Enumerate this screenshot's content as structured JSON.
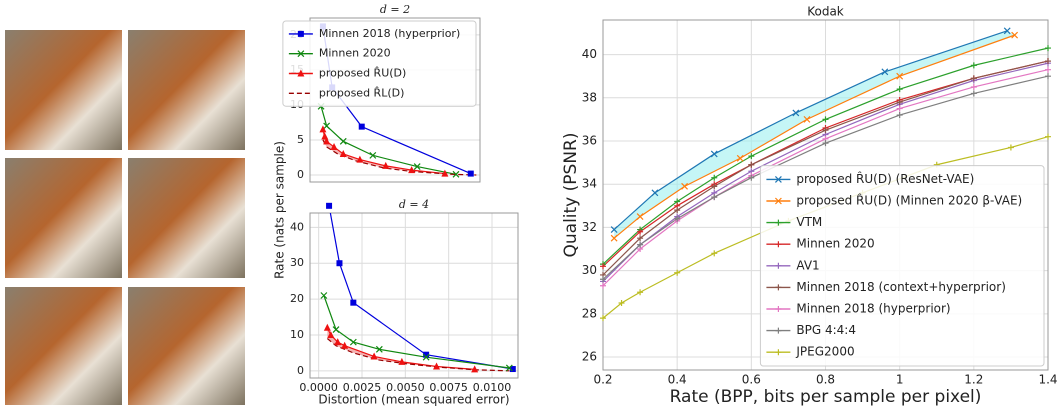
{
  "chart_data": [
    {
      "type": "line",
      "title": "d = 2",
      "ylabel": "Rate (nats per sample)",
      "xlim": [
        -0.0005,
        0.0087
      ],
      "ylim": [
        -1,
        22.4
      ],
      "yticks": [
        0,
        5,
        10,
        15,
        20
      ],
      "grid": true,
      "legend": "upper right",
      "fill_between": [
        2,
        3
      ],
      "fill_color": "#f08080",
      "series": [
        {
          "name": "Minnen 2018 (hyperprior)",
          "color": "#0000dd",
          "marker": "square",
          "x": [
            0.0002,
            0.0007,
            0.0023,
            0.0082
          ],
          "values": [
            21.2,
            12.5,
            6.9,
            0.2
          ]
        },
        {
          "name": "Minnen 2020",
          "color": "#108810",
          "marker": "x",
          "x": [
            0.0001,
            0.0004,
            0.0013,
            0.0029,
            0.0053,
            0.0074
          ],
          "values": [
            9.8,
            7.0,
            4.8,
            2.8,
            1.2,
            0.1
          ]
        },
        {
          "name": "proposed R̂U(D)",
          "color": "#ee1111",
          "marker": "triangle",
          "x": [
            0.0002,
            0.0003,
            0.0004,
            0.0008,
            0.0013,
            0.0022,
            0.0036,
            0.005,
            0.0068
          ],
          "values": [
            6.5,
            5.5,
            4.8,
            4.0,
            3.0,
            2.2,
            1.3,
            0.7,
            0.2
          ]
        },
        {
          "name": "proposed R̂L(D)",
          "color": "#990000",
          "dash": "5,3",
          "x": [
            0.0002,
            0.0004,
            0.001,
            0.002,
            0.0035,
            0.005,
            0.0072,
            0.0085
          ],
          "values": [
            5.0,
            4.0,
            3.0,
            2.0,
            1.0,
            0.5,
            0.1,
            0
          ]
        }
      ]
    },
    {
      "type": "line",
      "title": "d = 4",
      "xlabel": "Distortion (mean squared error)",
      "xlim": [
        -0.0005,
        0.0115
      ],
      "ylim": [
        -2,
        44
      ],
      "yticks": [
        0,
        10,
        20,
        30,
        40
      ],
      "xticks": [
        {
          "value": 0,
          "label": "0.0000"
        },
        {
          "value": 0.0025,
          "label": "0.0025"
        },
        {
          "value": 0.005,
          "label": "0.0050"
        },
        {
          "value": 0.0075,
          "label": "0.0075"
        },
        {
          "value": 0.01,
          "label": "0.0100"
        }
      ],
      "grid": true,
      "fill_between": [
        2,
        3
      ],
      "fill_color": "#f08080",
      "series": [
        {
          "name": "Minnen 2018 (hyperprior)",
          "color": "#0000dd",
          "marker": "square",
          "x": [
            0.0006,
            0.0012,
            0.002,
            0.0062,
            0.0112
          ],
          "values": [
            46,
            30,
            19,
            4.5,
            0.5
          ]
        },
        {
          "name": "Minnen 2020",
          "color": "#108810",
          "marker": "x",
          "x": [
            0.0003,
            0.001,
            0.002,
            0.0035,
            0.0062,
            0.011
          ],
          "values": [
            21,
            11.5,
            8,
            6,
            3.8,
            0.8
          ]
        },
        {
          "name": "proposed R̂U(D)",
          "color": "#ee1111",
          "marker": "triangle",
          "x": [
            0.0005,
            0.0007,
            0.0011,
            0.0015,
            0.0032,
            0.0048,
            0.0068,
            0.009
          ],
          "values": [
            12,
            10,
            8,
            7,
            4,
            2.5,
            1.2,
            0.4
          ]
        },
        {
          "name": "proposed R̂L(D)",
          "color": "#990000",
          "dash": "5,3",
          "x": [
            0.0005,
            0.001,
            0.002,
            0.0035,
            0.005,
            0.007,
            0.009,
            0.011
          ],
          "values": [
            9,
            7,
            5,
            3,
            2,
            1,
            0.3,
            0
          ]
        }
      ]
    },
    {
      "type": "line",
      "title": "Kodak",
      "xlabel": "Rate (BPP, bits per sample per pixel)",
      "ylabel": "Quality (PSNR)",
      "xlim": [
        0.2,
        1.4
      ],
      "ylim": [
        25.4,
        41.6
      ],
      "xticks": [
        0.2,
        0.4,
        0.6,
        0.8,
        1.0,
        1.2,
        1.4
      ],
      "yticks": [
        26,
        28,
        30,
        32,
        34,
        36,
        38,
        40
      ],
      "grid": true,
      "legend": "lower right",
      "fill_between": [
        0,
        1
      ],
      "fill_color": "#9ff0f0",
      "series": [
        {
          "name": "proposed R̂U(D) (ResNet-VAE)",
          "color": "#1f77b4",
          "marker": "x",
          "x": [
            0.23,
            0.34,
            0.5,
            0.72,
            0.96,
            1.29
          ],
          "values": [
            31.9,
            33.6,
            35.4,
            37.3,
            39.2,
            41.1
          ]
        },
        {
          "name": "proposed R̂U(D) (Minnen 2020 β-VAE)",
          "color": "#ff7f0e",
          "marker": "x",
          "x": [
            0.23,
            0.3,
            0.42,
            0.57,
            0.75,
            1.0,
            1.31
          ],
          "values": [
            31.5,
            32.5,
            33.9,
            35.2,
            37.0,
            39.0,
            40.9
          ]
        },
        {
          "name": "VTM",
          "color": "#2ca02c",
          "marker": "plus",
          "x": [
            0.2,
            0.3,
            0.4,
            0.5,
            0.6,
            0.8,
            1.0,
            1.2,
            1.4
          ],
          "values": [
            30.3,
            31.9,
            33.2,
            34.3,
            35.3,
            37.0,
            38.4,
            39.5,
            40.3
          ]
        },
        {
          "name": "Minnen 2020",
          "color": "#d62728",
          "marker": "plus",
          "x": [
            0.2,
            0.3,
            0.4,
            0.5,
            0.6,
            0.8,
            1.0,
            1.2,
            1.4
          ],
          "values": [
            30.2,
            31.8,
            33.0,
            34.0,
            34.9,
            36.6,
            37.9,
            38.9,
            39.7
          ]
        },
        {
          "name": "AV1",
          "color": "#9467bd",
          "marker": "plus",
          "x": [
            0.2,
            0.3,
            0.4,
            0.5,
            0.6,
            0.8,
            1.0,
            1.2,
            1.4
          ],
          "values": [
            29.5,
            31.2,
            32.5,
            33.6,
            34.6,
            36.3,
            37.7,
            38.8,
            39.6
          ]
        },
        {
          "name": "Minnen 2018 (context+hyperprior)",
          "color": "#8c564b",
          "marker": "plus",
          "x": [
            0.2,
            0.3,
            0.4,
            0.5,
            0.6,
            0.8,
            1.0,
            1.2,
            1.4
          ],
          "values": [
            29.8,
            31.5,
            32.8,
            33.9,
            34.9,
            36.5,
            37.8,
            38.9,
            39.7
          ]
        },
        {
          "name": "Minnen 2018 (hyperprior)",
          "color": "#e377c2",
          "marker": "plus",
          "x": [
            0.2,
            0.3,
            0.4,
            0.5,
            0.6,
            0.8,
            1.0,
            1.2,
            1.4
          ],
          "values": [
            29.3,
            31.0,
            32.3,
            33.4,
            34.4,
            36.1,
            37.5,
            38.5,
            39.3
          ]
        },
        {
          "name": "BPG 4:4:4",
          "color": "#7f7f7f",
          "marker": "plus",
          "x": [
            0.2,
            0.3,
            0.4,
            0.5,
            0.6,
            0.8,
            1.0,
            1.2,
            1.4
          ],
          "values": [
            29.6,
            31.2,
            32.4,
            33.4,
            34.3,
            35.9,
            37.2,
            38.2,
            39.0
          ]
        },
        {
          "name": "JPEG2000",
          "color": "#bcbd22",
          "marker": "plus",
          "x": [
            0.2,
            0.25,
            0.3,
            0.4,
            0.5,
            0.7,
            0.9,
            1.1,
            1.3,
            1.4
          ],
          "values": [
            27.8,
            28.5,
            29.0,
            29.9,
            30.8,
            32.3,
            33.6,
            34.9,
            35.7,
            36.2
          ]
        }
      ]
    }
  ]
}
